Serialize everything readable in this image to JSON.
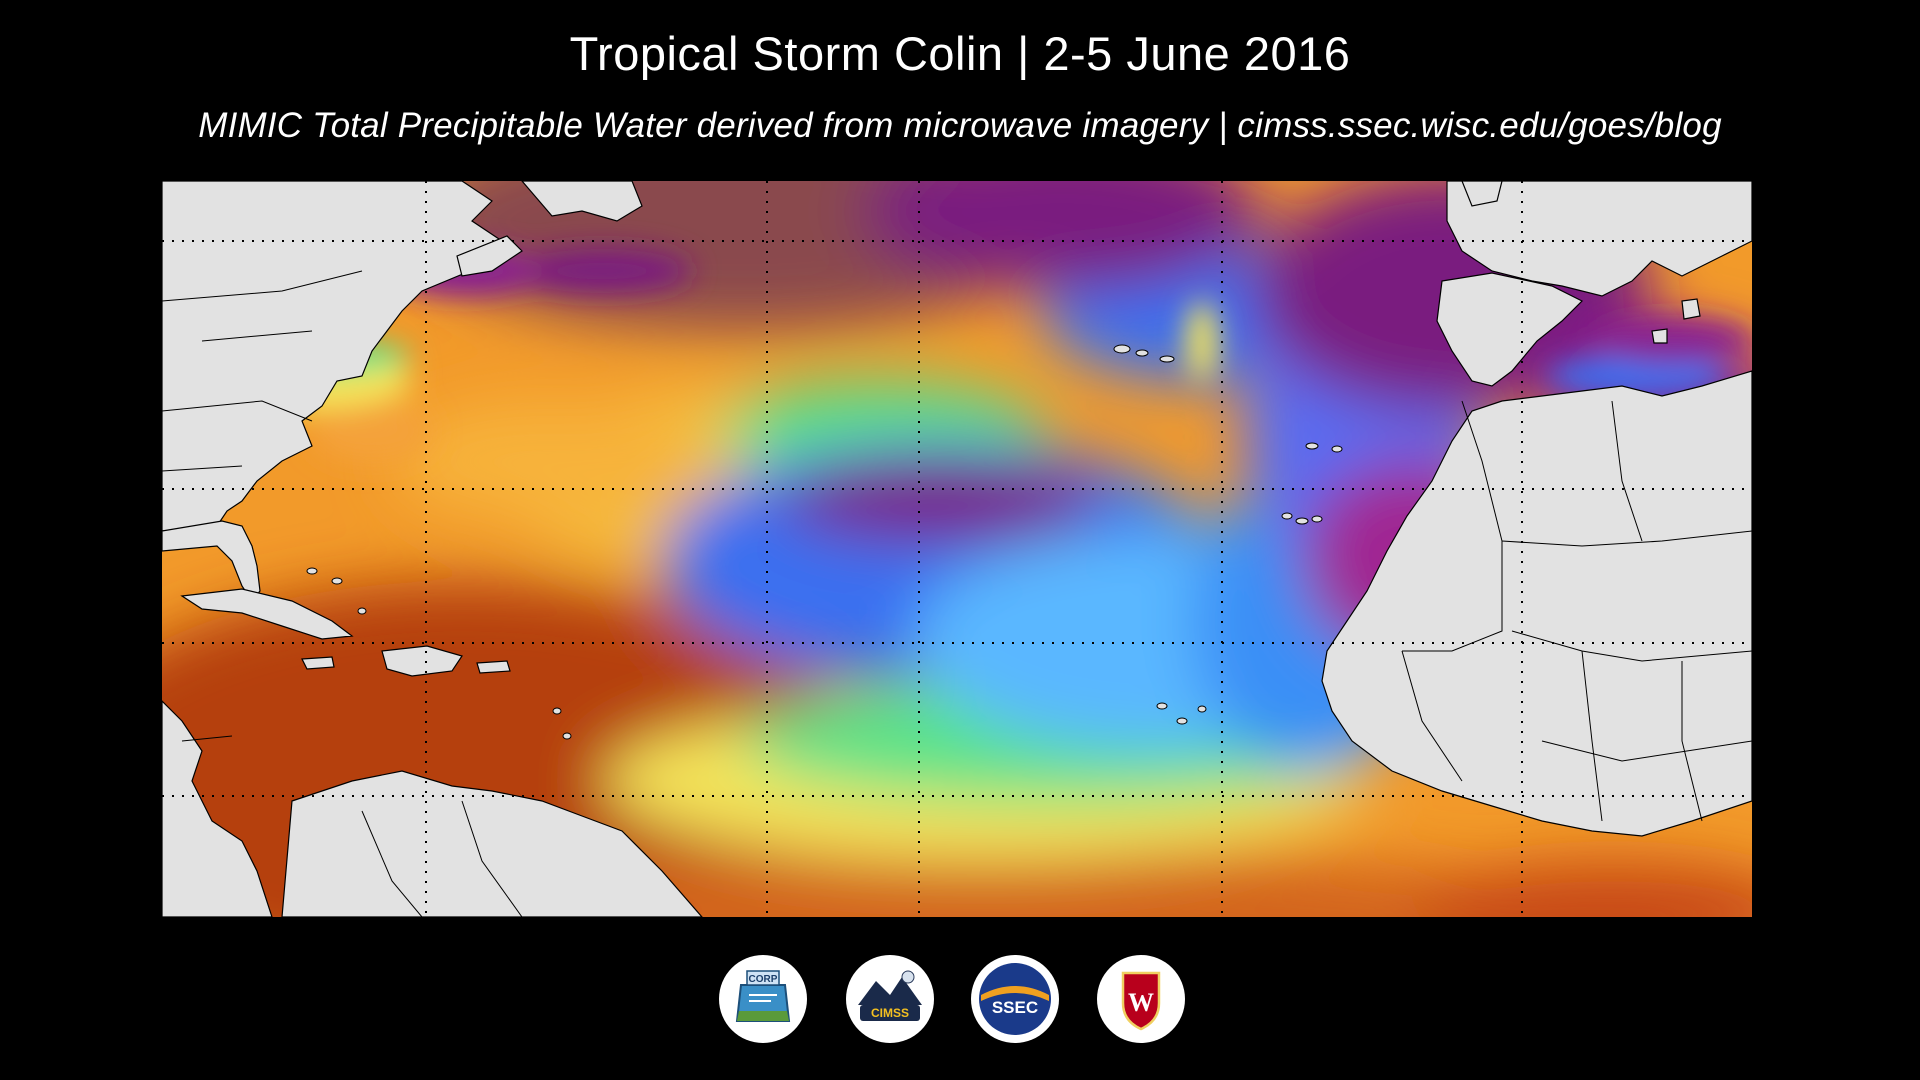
{
  "header": {
    "title": "Tropical Storm Colin | 2-5 June 2016",
    "subtitle": "MIMIC Total Precipitable Water derived from microwave imagery | cimss.ssec.wisc.edu/goes/blog"
  },
  "map": {
    "product": "MIMIC Total Precipitable Water",
    "colors": {
      "land": "#e2e2e2",
      "border": "#000000",
      "brown_dry": "#8a4a4e",
      "purple": "#7a1f7f",
      "magenta": "#a02592",
      "blue_dark": "#2f46d8",
      "blue": "#3a6ff0",
      "cyan": "#5ab7ff",
      "green": "#58e38a",
      "yellow": "#f4e45a",
      "orange": "#f29a2a",
      "orange_dark": "#d3651a",
      "red_brown": "#b5400f"
    }
  },
  "logos": [
    {
      "name": "corp-logo",
      "text": "CORP"
    },
    {
      "name": "cimss-logo",
      "text": "CIMSS"
    },
    {
      "name": "ssec-logo",
      "text": "SSEC"
    },
    {
      "name": "uw-logo",
      "text": "W"
    }
  ]
}
